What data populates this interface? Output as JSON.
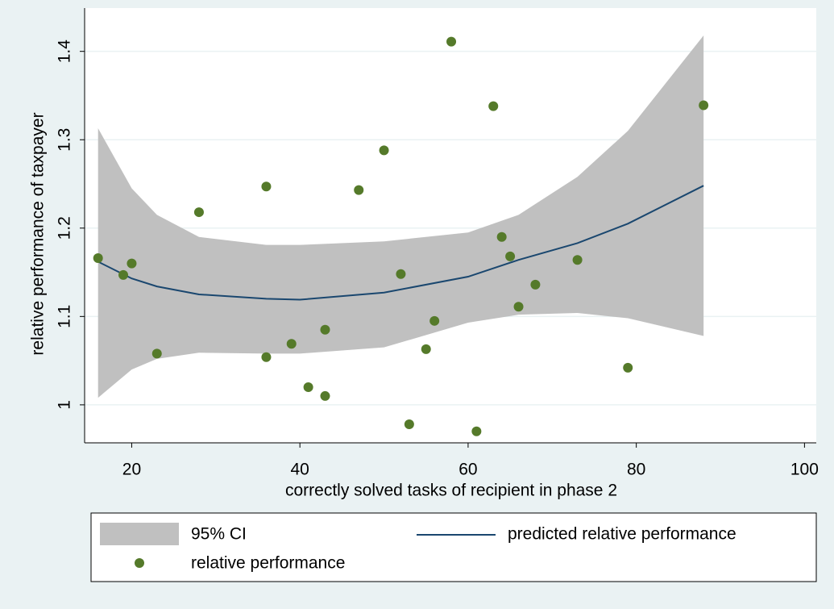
{
  "chart_data": {
    "type": "scatter",
    "x_label": "correctly solved tasks of recipient in phase 2",
    "y_label": "relative performance of taxpayer",
    "xlim": [
      14.4,
      101.4
    ],
    "xticks": [
      20,
      40,
      60,
      80,
      100
    ],
    "ylim": [
      0.957,
      1.449
    ],
    "yticks": [
      1,
      1.1,
      1.2,
      1.3,
      1.4
    ],
    "grid": true,
    "points": {
      "name": "relative performance",
      "color": "#557a2a",
      "x": [
        16,
        19,
        20,
        23,
        28,
        36,
        36,
        39,
        41,
        43,
        43,
        47,
        50,
        52,
        53,
        55,
        56,
        58,
        61,
        63,
        64,
        65,
        66,
        68,
        73,
        79,
        88
      ],
      "values": [
        1.166,
        1.147,
        1.16,
        1.058,
        1.218,
        1.247,
        1.054,
        1.069,
        1.02,
        1.085,
        1.01,
        1.243,
        1.288,
        1.148,
        0.978,
        1.063,
        1.095,
        1.411,
        0.97,
        1.338,
        1.19,
        1.168,
        1.111,
        1.136,
        1.164,
        1.042,
        1.339
      ]
    },
    "fit": {
      "name": "predicted relative performance",
      "color": "#1a476f",
      "x": [
        16,
        20,
        23,
        28,
        36,
        40,
        50,
        60,
        66,
        73,
        79,
        88
      ],
      "values": [
        1.162,
        1.143,
        1.134,
        1.125,
        1.12,
        1.119,
        1.127,
        1.145,
        1.164,
        1.183,
        1.205,
        1.248
      ]
    },
    "ci": {
      "name": "95% CI",
      "color": "#c0c0c0",
      "x": [
        16,
        20,
        23,
        28,
        36,
        40,
        50,
        60,
        66,
        73,
        79,
        88
      ],
      "lower": [
        1.008,
        1.04,
        1.052,
        1.059,
        1.058,
        1.058,
        1.065,
        1.093,
        1.102,
        1.104,
        1.098,
        1.078
      ],
      "upper": [
        1.313,
        1.245,
        1.215,
        1.19,
        1.181,
        1.181,
        1.185,
        1.195,
        1.215,
        1.258,
        1.31,
        1.418
      ]
    }
  }
}
